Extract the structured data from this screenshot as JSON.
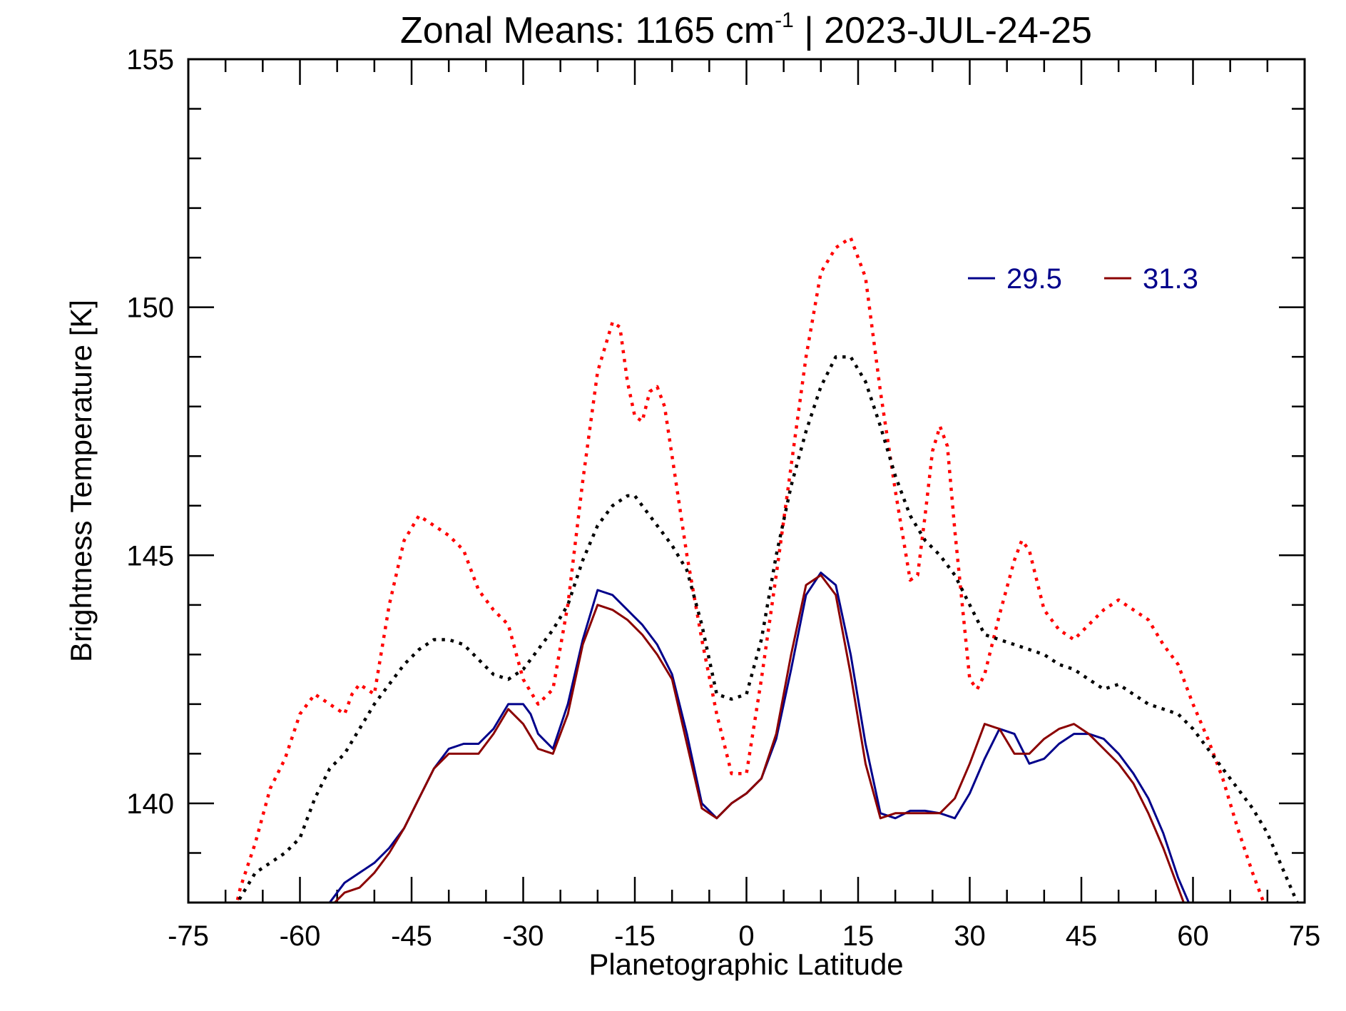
{
  "chart_data": {
    "type": "line",
    "title_main": "Zonal Means:     1165 cm",
    "title_sup": "-1",
    "title_tail": " | 2023-JUL-24-25",
    "xlabel": "Planetographic Latitude",
    "ylabel": "Brightness Temperature [K]",
    "xlim": [
      -75,
      75
    ],
    "ylim": [
      138,
      155
    ],
    "xticks": [
      -75,
      -60,
      -45,
      -30,
      -15,
      0,
      15,
      30,
      45,
      60,
      75
    ],
    "xtick_labels": [
      "-75",
      "-60",
      "-45",
      "-30",
      "-15",
      "0",
      "15",
      "30",
      "45",
      "60",
      "75"
    ],
    "yticks": [
      140,
      145,
      150,
      155
    ],
    "ytick_labels": [
      "140",
      "145",
      "150",
      "155"
    ],
    "legend_placement": "top-right",
    "series": [
      {
        "name": "29.5",
        "color": "#00008b",
        "style": "solid",
        "x": [
          -56,
          -54,
          -52,
          -50,
          -48,
          -46,
          -44,
          -42,
          -40,
          -38,
          -36,
          -34,
          -32,
          -30,
          -29,
          -28,
          -26,
          -24,
          -22,
          -20,
          -18,
          -16,
          -14,
          -12,
          -10,
          -8,
          -6,
          -4,
          -2,
          0,
          2,
          4,
          6,
          8,
          10,
          12,
          14,
          16,
          18,
          20,
          22,
          24,
          26,
          28,
          30,
          32,
          34,
          36,
          38,
          40,
          42,
          44,
          46,
          48,
          50,
          52,
          54,
          56,
          58,
          60,
          62,
          64,
          66
        ],
        "y": [
          138.0,
          138.4,
          138.6,
          138.8,
          139.1,
          139.5,
          140.1,
          140.7,
          141.1,
          141.2,
          141.2,
          141.5,
          142.0,
          142.0,
          141.8,
          141.4,
          141.1,
          142.0,
          143.3,
          144.3,
          144.2,
          143.9,
          143.6,
          143.2,
          142.6,
          141.4,
          140.0,
          139.7,
          140.0,
          140.2,
          140.5,
          141.3,
          142.7,
          144.2,
          144.65,
          144.4,
          143.0,
          141.2,
          139.8,
          139.7,
          139.85,
          139.85,
          139.8,
          139.7,
          140.2,
          140.9,
          141.5,
          141.4,
          140.8,
          140.9,
          141.2,
          141.4,
          141.4,
          141.3,
          141.0,
          140.6,
          140.1,
          139.4,
          138.5,
          137.8,
          137.0,
          136.5,
          136.0
        ],
        "x_fit": [
          -56,
          -54,
          -52,
          -50,
          -48,
          -46,
          -44,
          -42,
          -40,
          -38,
          -36,
          -34,
          -32,
          -30,
          -29,
          -28,
          -26,
          -24,
          -22,
          -20,
          -18,
          -16,
          -14,
          -12,
          -10,
          -8,
          -6,
          -4,
          -2,
          0,
          2,
          4,
          6,
          8,
          10,
          12,
          14,
          16,
          18,
          20,
          22,
          24,
          26,
          28,
          30,
          32,
          34,
          36,
          38,
          40,
          42,
          44,
          46,
          48,
          50,
          52,
          54,
          56,
          58,
          60,
          62,
          64,
          66
        ]
      },
      {
        "name": "31.3",
        "color": "#8b0000",
        "style": "solid",
        "x": [
          -56,
          -54,
          -52,
          -50,
          -48,
          -46,
          -44,
          -42,
          -40,
          -38,
          -36,
          -34,
          -32,
          -30,
          -28,
          -26,
          -24,
          -22,
          -20,
          -18,
          -16,
          -14,
          -12,
          -10,
          -8,
          -6,
          -4,
          -2,
          0,
          2,
          4,
          6,
          8,
          10,
          12,
          14,
          16,
          18,
          20,
          22,
          24,
          26,
          28,
          30,
          32,
          34,
          36,
          38,
          40,
          42,
          44,
          46,
          48,
          50,
          52,
          54,
          56,
          58,
          60,
          62,
          64,
          66
        ],
        "y": [
          137.9,
          138.2,
          138.3,
          138.6,
          139.0,
          139.5,
          140.1,
          140.7,
          141.0,
          141.0,
          141.0,
          141.4,
          141.9,
          141.6,
          141.1,
          141.0,
          141.8,
          143.2,
          144.0,
          143.9,
          143.7,
          143.4,
          143.0,
          142.5,
          141.2,
          139.9,
          139.7,
          140.0,
          140.2,
          140.5,
          141.4,
          143.0,
          144.4,
          144.6,
          144.2,
          142.6,
          140.8,
          139.7,
          139.8,
          139.8,
          139.8,
          139.8,
          140.1,
          140.8,
          141.6,
          141.5,
          141.0,
          141.0,
          141.3,
          141.5,
          141.6,
          141.4,
          141.1,
          140.8,
          140.4,
          139.8,
          139.1,
          138.3,
          137.5,
          137.0,
          136.5,
          136.0
        ]
      },
      {
        "name": "",
        "color": "#ff0000",
        "style": "dotted",
        "x": [
          -70,
          -68,
          -66,
          -64,
          -62,
          -60,
          -58,
          -56,
          -54,
          -53,
          -52,
          -50,
          -48,
          -46,
          -44,
          -42,
          -40,
          -38,
          -36,
          -34,
          -32,
          -30,
          -28,
          -26,
          -24,
          -22,
          -20,
          -18,
          -17,
          -16,
          -15,
          -14,
          -13,
          -12,
          -11,
          -10,
          -8,
          -6,
          -4,
          -2,
          0,
          2,
          4,
          6,
          8,
          10,
          12,
          14,
          16,
          18,
          20,
          22,
          23,
          24,
          25,
          26,
          27,
          28,
          30,
          31,
          32,
          34,
          36,
          37,
          38,
          40,
          42,
          44,
          46,
          48,
          50,
          52,
          54,
          56,
          58,
          60,
          62,
          64,
          66,
          68,
          70
        ],
        "y": [
          137.0,
          138.3,
          139.2,
          140.3,
          140.9,
          141.8,
          142.2,
          142.0,
          141.8,
          142.2,
          142.4,
          142.2,
          144.0,
          145.3,
          145.8,
          145.6,
          145.4,
          145.1,
          144.3,
          143.9,
          143.6,
          142.5,
          142.0,
          142.3,
          144.0,
          146.5,
          148.7,
          149.7,
          149.6,
          148.5,
          147.8,
          147.7,
          148.3,
          148.4,
          148.0,
          147.0,
          145.0,
          143.3,
          141.8,
          140.6,
          140.6,
          142.5,
          144.6,
          146.8,
          149.0,
          150.7,
          151.2,
          151.4,
          150.6,
          148.3,
          146.3,
          144.5,
          144.6,
          145.8,
          147.1,
          147.6,
          147.2,
          145.5,
          142.5,
          142.3,
          142.6,
          143.8,
          144.9,
          145.3,
          145.1,
          143.9,
          143.5,
          143.3,
          143.6,
          143.9,
          144.1,
          143.9,
          143.7,
          143.2,
          142.8,
          142.0,
          141.3,
          140.5,
          139.5,
          138.6,
          137.8
        ]
      },
      {
        "name": "",
        "color": "#000000",
        "style": "dotted",
        "x": [
          -70,
          -68,
          -66,
          -64,
          -62,
          -60,
          -58,
          -56,
          -54,
          -52,
          -50,
          -48,
          -46,
          -44,
          -42,
          -40,
          -38,
          -36,
          -34,
          -32,
          -30,
          -28,
          -26,
          -24,
          -22,
          -20,
          -18,
          -16,
          -15,
          -14,
          -12,
          -10,
          -8,
          -6,
          -4,
          -2,
          0,
          2,
          4,
          6,
          8,
          10,
          12,
          14,
          16,
          18,
          20,
          22,
          24,
          26,
          28,
          30,
          32,
          34,
          36,
          38,
          40,
          42,
          44,
          46,
          48,
          50,
          52,
          54,
          56,
          58,
          60,
          62,
          64,
          66,
          68,
          70,
          72,
          74
        ],
        "y": [
          137.6,
          138.1,
          138.6,
          138.8,
          139.0,
          139.3,
          140.1,
          140.7,
          141.0,
          141.5,
          142.0,
          142.4,
          142.8,
          143.1,
          143.3,
          143.3,
          143.2,
          142.9,
          142.6,
          142.5,
          142.7,
          143.1,
          143.5,
          144.0,
          144.9,
          145.6,
          146.0,
          146.2,
          146.2,
          146.0,
          145.6,
          145.2,
          144.7,
          143.6,
          142.2,
          142.1,
          142.2,
          143.3,
          145.0,
          146.4,
          147.5,
          148.4,
          149.0,
          149.0,
          148.5,
          147.6,
          146.6,
          145.8,
          145.3,
          145.0,
          144.6,
          144.0,
          143.4,
          143.3,
          143.2,
          143.1,
          143.0,
          142.8,
          142.7,
          142.5,
          142.3,
          142.4,
          142.2,
          142.0,
          141.9,
          141.8,
          141.5,
          141.1,
          140.7,
          140.3,
          139.9,
          139.4,
          138.7,
          138.0
        ]
      }
    ]
  }
}
